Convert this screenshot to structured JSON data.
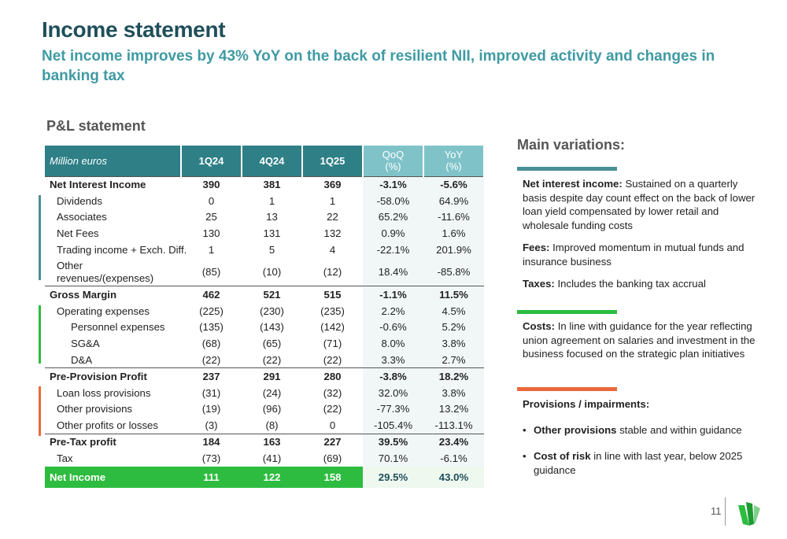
{
  "title": "Income statement",
  "subtitle": "Net income improves by 43% YoY on the back of resilient NII, improved activity and changes in banking tax",
  "section_title": "P&L statement",
  "table": {
    "header": {
      "label": "Million euros",
      "c1": "1Q24",
      "c2": "4Q24",
      "c3": "1Q25",
      "qoq": "QoQ",
      "qoq_unit": "(%)",
      "yoy": "YoY",
      "yoy_unit": "(%)"
    },
    "rows": [
      {
        "label": "Net Interest Income",
        "v1": "390",
        "v2": "381",
        "v3": "369",
        "qoq": "-3.1%",
        "yoy": "-5.6%"
      },
      {
        "label": "Dividends",
        "v1": "0",
        "v2": "1",
        "v3": "1",
        "qoq": "-58.0%",
        "yoy": "64.9%"
      },
      {
        "label": "Associates",
        "v1": "25",
        "v2": "13",
        "v3": "22",
        "qoq": "65.2%",
        "yoy": "-11.6%"
      },
      {
        "label": "Net Fees",
        "v1": "130",
        "v2": "131",
        "v3": "132",
        "qoq": "0.9%",
        "yoy": "1.6%"
      },
      {
        "label": "Trading income + Exch. Diff.",
        "v1": "1",
        "v2": "5",
        "v3": "4",
        "qoq": "-22.1%",
        "yoy": "201.9%"
      },
      {
        "label": "Other revenues/(expenses)",
        "v1": "(85)",
        "v2": "(10)",
        "v3": "(12)",
        "qoq": "18.4%",
        "yoy": "-85.8%"
      },
      {
        "label": "Gross Margin",
        "v1": "462",
        "v2": "521",
        "v3": "515",
        "qoq": "-1.1%",
        "yoy": "11.5%"
      },
      {
        "label": "Operating expenses",
        "v1": "(225)",
        "v2": "(230)",
        "v3": "(235)",
        "qoq": "2.2%",
        "yoy": "4.5%"
      },
      {
        "label": "Personnel expenses",
        "v1": "(135)",
        "v2": "(143)",
        "v3": "(142)",
        "qoq": "-0.6%",
        "yoy": "5.2%"
      },
      {
        "label": "SG&A",
        "v1": "(68)",
        "v2": "(65)",
        "v3": "(71)",
        "qoq": "8.0%",
        "yoy": "3.8%"
      },
      {
        "label": "D&A",
        "v1": "(22)",
        "v2": "(22)",
        "v3": "(22)",
        "qoq": "3.3%",
        "yoy": "2.7%"
      },
      {
        "label": "Pre-Provision Profit",
        "v1": "237",
        "v2": "291",
        "v3": "280",
        "qoq": "-3.8%",
        "yoy": "18.2%"
      },
      {
        "label": "Loan loss provisions",
        "v1": "(31)",
        "v2": "(24)",
        "v3": "(32)",
        "qoq": "32.0%",
        "yoy": "3.8%"
      },
      {
        "label": "Other provisions",
        "v1": "(19)",
        "v2": "(96)",
        "v3": "(22)",
        "qoq": "-77.3%",
        "yoy": "13.2%"
      },
      {
        "label": "Other profits or losses",
        "v1": "(3)",
        "v2": "(8)",
        "v3": "0",
        "qoq": "-105.4%",
        "yoy": "-113.1%"
      },
      {
        "label": "Pre-Tax profit",
        "v1": "184",
        "v2": "163",
        "v3": "227",
        "qoq": "39.5%",
        "yoy": "23.4%"
      },
      {
        "label": "Tax",
        "v1": "(73)",
        "v2": "(41)",
        "v3": "(69)",
        "qoq": "70.1%",
        "yoy": "-6.1%"
      },
      {
        "label": "Net Income",
        "v1": "111",
        "v2": "122",
        "v3": "158",
        "qoq": "29.5%",
        "yoy": "43.0%"
      }
    ]
  },
  "variations": {
    "title": "Main variations:",
    "nii_label": "Net interest income:",
    "nii_text": " Sustained on a quarterly basis despite day count effect on the back of lower loan yield compensated by lower retail and wholesale funding costs",
    "fees_label": "Fees:",
    "fees_text": " Improved momentum in mutual funds and insurance business",
    "taxes_label": "Taxes:",
    "taxes_text": " Includes the banking tax accrual",
    "costs_label": "Costs:",
    "costs_text": " In line with guidance for the year reflecting union agreement on salaries and investment in the business focused on the strategic plan initiatives",
    "prov_title": "Provisions / impairments:",
    "b1_label": "Other provisions",
    "b1_text": " stable and within guidance",
    "b2_label": "Cost of risk",
    "b2_text": " in line with last year, below 2025 guidance"
  },
  "colors": {
    "teal": "#4a8f96",
    "green": "#2dbc3f",
    "orange": "#ea6a3b"
  },
  "page_number": "11"
}
